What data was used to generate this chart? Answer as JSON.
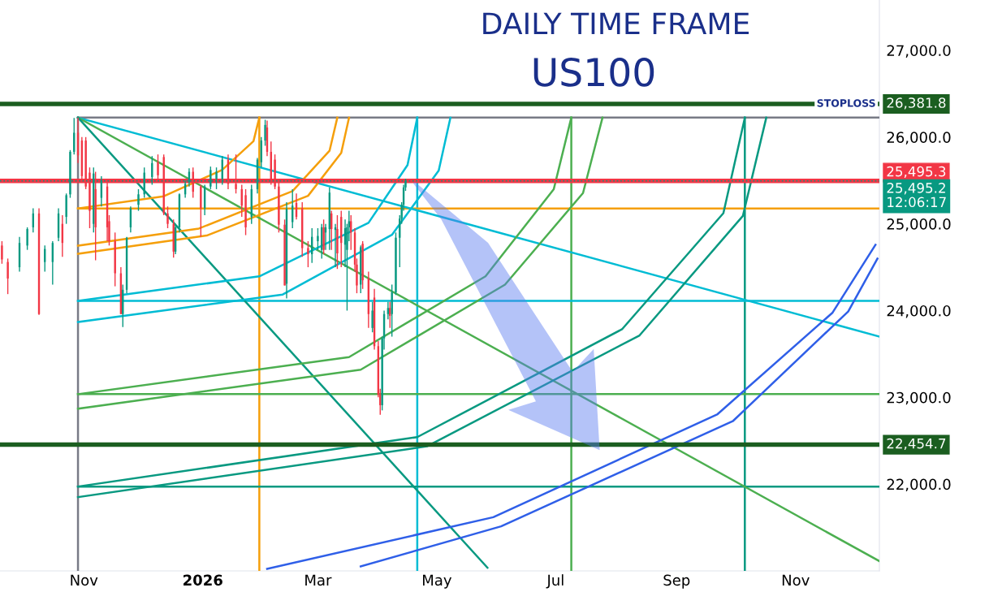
{
  "chart_data": {
    "type": "candlestick",
    "title": "DAILY TIME FRAME",
    "subtitle": "US100",
    "xlim": [
      "2025-09-19",
      "2026-12-14"
    ],
    "xticks": [
      {
        "value": "2025-11-01",
        "label": "Nov"
      },
      {
        "value": "2026-01-01",
        "label": "2026"
      },
      {
        "value": "2026-03-01",
        "label": "Mar"
      },
      {
        "value": "2026-05-01",
        "label": "May"
      },
      {
        "value": "2026-07-01",
        "label": "Jul"
      },
      {
        "value": "2026-09-01",
        "label": "Sep"
      },
      {
        "value": "2026-11-01",
        "label": "Nov"
      }
    ],
    "ylim": [
      21000,
      27580
    ],
    "yticks": [
      {
        "value": 22000,
        "label": "22,000.0"
      },
      {
        "value": 23000,
        "label": "23,000.0"
      },
      {
        "value": 24000,
        "label": "24,000.0"
      },
      {
        "value": 25000,
        "label": "25,000.0"
      },
      {
        "value": 26000,
        "label": "26,000.0"
      },
      {
        "value": 27000,
        "label": "27,000.0"
      }
    ],
    "x": [
      "2025-09-20",
      "2025-09-23",
      "2025-09-29",
      "2025-10-03",
      "2025-10-06",
      "2025-10-09",
      "2025-10-12",
      "2025-10-16",
      "2025-10-19",
      "2025-10-21",
      "2025-10-23",
      "2025-10-25",
      "2025-10-27",
      "2025-10-29",
      "2025-10-31",
      "2025-11-02",
      "2025-11-04",
      "2025-11-06",
      "2025-11-07",
      "2025-11-10",
      "2025-11-13",
      "2025-11-14",
      "2025-11-17",
      "2025-11-20",
      "2025-11-21",
      "2025-11-23",
      "2025-11-25",
      "2025-11-29",
      "2025-12-02",
      "2025-12-06",
      "2025-12-09",
      "2025-12-12",
      "2025-12-14",
      "2025-12-17",
      "2025-12-18",
      "2025-12-20",
      "2025-12-23",
      "2025-12-25",
      "2025-12-27",
      "2025-12-31",
      "2026-01-02",
      "2026-01-05",
      "2026-01-08",
      "2026-01-11",
      "2026-01-14",
      "2026-01-18",
      "2026-01-21",
      "2026-01-23",
      "2026-01-26",
      "2026-01-29",
      "2026-01-31",
      "2026-02-02",
      "2026-02-03",
      "2026-02-05",
      "2026-02-07",
      "2026-02-09",
      "2026-02-12",
      "2026-02-13",
      "2026-02-16",
      "2026-02-18",
      "2026-02-21",
      "2026-02-24",
      "2026-02-26",
      "2026-03-01",
      "2026-03-03",
      "2026-03-04",
      "2026-03-05",
      "2026-03-07",
      "2026-03-08",
      "2026-03-10",
      "2026-03-11",
      "2026-03-13",
      "2026-03-15",
      "2026-03-16",
      "2026-03-17",
      "2026-03-18",
      "2026-03-20",
      "2026-03-21",
      "2026-03-23",
      "2026-03-24",
      "2026-03-27",
      "2026-03-29",
      "2026-03-30",
      "2026-04-01",
      "2026-04-02",
      "2026-04-03",
      "2026-04-04",
      "2026-04-06",
      "2026-04-07",
      "2026-04-08",
      "2026-04-10",
      "2026-04-12",
      "2026-04-13",
      "2026-04-14",
      "2026-04-15"
    ],
    "ohlc": [
      [
        24750,
        24800,
        24540,
        24590
      ],
      [
        24560,
        24600,
        24190,
        24370
      ],
      [
        24500,
        24850,
        24450,
        24780
      ],
      [
        24750,
        24960,
        24700,
        24940
      ],
      [
        24960,
        25180,
        24900,
        25120
      ],
      [
        25120,
        25180,
        23950,
        23960
      ],
      [
        24560,
        24750,
        24450,
        24710
      ],
      [
        24560,
        24800,
        24300,
        24780
      ],
      [
        24840,
        25180,
        24800,
        25120
      ],
      [
        25000,
        25100,
        24620,
        24780
      ],
      [
        25080,
        25350,
        25000,
        25330
      ],
      [
        25340,
        25850,
        25300,
        25830
      ],
      [
        25830,
        26220,
        25800,
        26050
      ],
      [
        26050,
        26224,
        25700,
        25790
      ],
      [
        25960,
        26000,
        25500,
        25550
      ],
      [
        25960,
        26000,
        25400,
        25430
      ],
      [
        25590,
        25650,
        24950,
        25150
      ],
      [
        25000,
        25650,
        24900,
        25580
      ],
      [
        25400,
        25600,
        24580,
        24960
      ],
      [
        25300,
        25550,
        25200,
        25500
      ],
      [
        25430,
        25500,
        24800,
        24960
      ],
      [
        25030,
        25100,
        24750,
        24800
      ],
      [
        24800,
        24900,
        24280,
        24430
      ],
      [
        24430,
        24500,
        23960,
        23960
      ],
      [
        23960,
        24300,
        23810,
        24240
      ],
      [
        24240,
        24850,
        24200,
        24840
      ],
      [
        24960,
        25200,
        24900,
        25180
      ],
      [
        25220,
        25400,
        25150,
        25340
      ],
      [
        25340,
        25650,
        25300,
        25590
      ],
      [
        25540,
        25780,
        25450,
        25700
      ],
      [
        25710,
        25800,
        25500,
        25560
      ],
      [
        25770,
        25800,
        25100,
        25120
      ],
      [
        25120,
        25200,
        24950,
        25000
      ],
      [
        25000,
        25050,
        24610,
        24680
      ],
      [
        24680,
        25000,
        24650,
        24960
      ],
      [
        24960,
        25350,
        24900,
        25340
      ],
      [
        25340,
        25500,
        25300,
        25460
      ],
      [
        25480,
        25640,
        25430,
        25600
      ],
      [
        25600,
        25650,
        25300,
        25370
      ],
      [
        25430,
        25450,
        24850,
        25180
      ],
      [
        25180,
        25450,
        25100,
        25430
      ],
      [
        25430,
        25660,
        25400,
        25620
      ],
      [
        25520,
        25650,
        25400,
        25600
      ],
      [
        25520,
        25780,
        25450,
        25740
      ],
      [
        25740,
        25800,
        25400,
        25460
      ],
      [
        25460,
        25800,
        25350,
        25400
      ],
      [
        25400,
        25450,
        25080,
        25210
      ],
      [
        25330,
        25400,
        24870,
        24960
      ],
      [
        25080,
        25450,
        25000,
        25400
      ],
      [
        25400,
        25760,
        25350,
        25740
      ],
      [
        25710,
        26000,
        25650,
        25960
      ],
      [
        25960,
        26200,
        25900,
        26140
      ],
      [
        26110,
        26190,
        25780,
        25830
      ],
      [
        25830,
        25950,
        25450,
        25500
      ],
      [
        25740,
        25800,
        25400,
        25430
      ],
      [
        25430,
        25500,
        24900,
        24990
      ],
      [
        24990,
        25050,
        24290,
        24290
      ],
      [
        24310,
        25250,
        24140,
        25170
      ],
      [
        25020,
        25400,
        24950,
        25210
      ],
      [
        25240,
        25350,
        25050,
        25080
      ],
      [
        25180,
        25250,
        24620,
        24720
      ],
      [
        24720,
        24800,
        24500,
        24650
      ],
      [
        24650,
        24950,
        24550,
        24850
      ],
      [
        24800,
        24950,
        24700,
        24860
      ],
      [
        24700,
        25000,
        24600,
        24960
      ],
      [
        24960,
        25050,
        24650,
        24700
      ],
      [
        24900,
        25000,
        24700,
        24960
      ],
      [
        24940,
        25420,
        24700,
        25360
      ],
      [
        25120,
        25150,
        24700,
        24940
      ],
      [
        24930,
        25000,
        24500,
        24960
      ],
      [
        24940,
        25100,
        24480,
        24660
      ],
      [
        25080,
        25150,
        24500,
        24780
      ],
      [
        24760,
        25050,
        24500,
        24950
      ],
      [
        24700,
        25000,
        24000,
        24960
      ],
      [
        24960,
        25150,
        24800,
        25030
      ],
      [
        25030,
        25100,
        24700,
        24900
      ],
      [
        24900,
        24950,
        24450,
        24530
      ],
      [
        24530,
        24600,
        24200,
        24290
      ],
      [
        24300,
        24750,
        24200,
        24730
      ],
      [
        24770,
        24800,
        24250,
        24350
      ],
      [
        24370,
        24450,
        23800,
        23960
      ],
      [
        23800,
        24100,
        23750,
        24000
      ],
      [
        24150,
        24250,
        23550,
        23590
      ],
      [
        23590,
        23650,
        23000,
        23030
      ],
      [
        23030,
        23100,
        22800,
        22910
      ],
      [
        22910,
        23700,
        22850,
        23680
      ],
      [
        23680,
        24000,
        23550,
        23960
      ],
      [
        23960,
        24100,
        23900,
        24030
      ],
      [
        24030,
        24100,
        23800,
        23940
      ],
      [
        23960,
        24300,
        23700,
        24210
      ],
      [
        24210,
        24900,
        24180,
        24840
      ],
      [
        24840,
        25100,
        24500,
        25060
      ],
      [
        25060,
        25250,
        25000,
        25220
      ],
      [
        25220,
        25450,
        25150,
        25420
      ],
      [
        25420,
        25520,
        25380,
        25495.2
      ]
    ],
    "series": [
      {
        "type": "line",
        "color": "#787b86",
        "x": [
          "2025-10-29",
          "2026-12-14"
        ],
        "values": [
          26224,
          26224
        ]
      },
      {
        "type": "line",
        "color": "#787b86",
        "x": [
          "2025-10-29",
          "2025-10-29"
        ],
        "values": [
          26224,
          21000
        ]
      },
      {
        "type": "line",
        "color": "#f59f0b",
        "x": [
          "2026-01-30",
          "2026-01-30"
        ],
        "values": [
          26224,
          21000
        ]
      },
      {
        "type": "line",
        "color": "#00bcd4",
        "x": [
          "2026-04-21",
          "2026-04-21"
        ],
        "values": [
          26224,
          21000
        ]
      },
      {
        "type": "line",
        "color": "#4caf50",
        "x": [
          "2026-07-09",
          "2026-07-09"
        ],
        "values": [
          26224,
          21000
        ]
      },
      {
        "type": "line",
        "color": "#089981",
        "x": [
          "2026-10-06",
          "2026-10-06"
        ],
        "values": [
          26224,
          21000
        ]
      },
      {
        "type": "line",
        "color": "#f59f0b",
        "x": [
          "2025-10-29",
          "2026-12-14"
        ],
        "values": [
          25178,
          25178
        ]
      },
      {
        "type": "line",
        "color": "#00bcd4",
        "x": [
          "2025-10-29",
          "2026-12-14"
        ],
        "values": [
          24112,
          24112
        ]
      },
      {
        "type": "line",
        "color": "#4caf50",
        "x": [
          "2025-10-29",
          "2026-12-14"
        ],
        "values": [
          23037,
          23037
        ]
      },
      {
        "type": "line",
        "color": "#089981",
        "x": [
          "2025-10-29",
          "2026-12-14"
        ],
        "values": [
          21972,
          21972
        ]
      },
      {
        "type": "line",
        "color": "#00bcd4",
        "x": [
          "2025-10-29",
          "2026-12-14"
        ],
        "values": [
          26224,
          23701
        ]
      },
      {
        "type": "line",
        "color": "#4caf50",
        "x": [
          "2025-10-29",
          "2026-12-14"
        ],
        "values": [
          26224,
          21112
        ]
      },
      {
        "type": "line",
        "color": "#089981",
        "x": [
          "2025-10-29",
          "2026-05-27"
        ],
        "values": [
          26224,
          21037
        ]
      },
      {
        "type": "line",
        "color": "#f59f0b",
        "x": [
          "2025-10-29",
          "2025-12-12",
          "2026-01-11",
          "2026-01-27",
          "2026-01-30"
        ],
        "values": [
          25178,
          25318,
          25623,
          25953,
          26224
        ]
      },
      {
        "type": "line",
        "color": "#f59f0b",
        "x": [
          "2025-10-29",
          "2025-12-30",
          "2026-02-16",
          "2026-03-07",
          "2026-03-11"
        ],
        "values": [
          24748,
          24946,
          25377,
          25842,
          26224
        ]
      },
      {
        "type": "line",
        "color": "#f59f0b",
        "x": [
          "2025-10-29",
          "2026-01-03",
          "2026-02-24",
          "2026-03-13",
          "2026-03-17"
        ],
        "values": [
          24654,
          24865,
          25323,
          25818,
          26224
        ]
      },
      {
        "type": "line",
        "color": "#00bcd4",
        "x": [
          "2025-10-29",
          "2026-01-30",
          "2026-03-27",
          "2026-04-16",
          "2026-04-21"
        ],
        "values": [
          24112,
          24395,
          25012,
          25678,
          26224
        ]
      },
      {
        "type": "line",
        "color": "#00bcd4",
        "x": [
          "2025-10-29",
          "2026-02-11",
          "2026-04-08",
          "2026-05-02",
          "2026-05-08"
        ],
        "values": [
          23869,
          24185,
          24873,
          25614,
          26224
        ]
      },
      {
        "type": "line",
        "color": "#4caf50",
        "x": [
          "2025-10-29",
          "2026-03-17",
          "2026-05-26",
          "2026-06-30",
          "2026-07-09"
        ],
        "values": [
          23037,
          23464,
          24395,
          25399,
          26224
        ]
      },
      {
        "type": "line",
        "color": "#4caf50",
        "x": [
          "2025-10-29",
          "2026-03-23",
          "2026-06-05",
          "2026-07-15",
          "2026-07-25"
        ],
        "values": [
          22869,
          23319,
          24299,
          25355,
          26224
        ]
      },
      {
        "type": "line",
        "color": "#089981",
        "x": [
          "2025-10-29",
          "2026-04-21",
          "2026-08-04",
          "2026-09-25",
          "2026-10-06"
        ],
        "values": [
          21972,
          22542,
          23785,
          25123,
          26224
        ]
      },
      {
        "type": "line",
        "color": "#089981",
        "x": [
          "2025-10-29",
          "2026-04-26",
          "2026-08-13",
          "2026-10-05",
          "2026-10-17"
        ],
        "values": [
          21850,
          22436,
          23714,
          25092,
          26224
        ]
      },
      {
        "type": "line",
        "color": "#2f5fe8",
        "x": [
          "2026-02-03",
          "2026-05-30",
          "2026-09-22",
          "2026-11-20",
          "2026-12-12"
        ],
        "values": [
          21023,
          21619,
          22806,
          23977,
          24759
        ]
      },
      {
        "type": "line",
        "color": "#2f5fe8",
        "x": [
          "2026-03-23",
          "2026-06-03",
          "2026-09-30",
          "2026-11-28",
          "2026-12-13"
        ],
        "values": [
          21051,
          21514,
          22729,
          23990,
          24600
        ]
      }
    ],
    "ref_lines": [
      {
        "axis": "y",
        "value": 26381.8,
        "label": "26,381.8",
        "color": "#1b5e20"
      },
      {
        "axis": "y",
        "value": 25495.3,
        "label": "25,495.3",
        "color": "#f23645"
      },
      {
        "axis": "y",
        "value": 25495.2,
        "label": "25,495.2\n12:06:17",
        "color": "#089981",
        "line_style": "dotted"
      },
      {
        "axis": "y",
        "value": 22454.7,
        "label": "22,454.7",
        "color": "#1b5e20"
      }
    ],
    "annotations": [
      {
        "text": "STOPLOSS",
        "x": "2026-11-27",
        "y": 26381.8
      }
    ]
  }
}
